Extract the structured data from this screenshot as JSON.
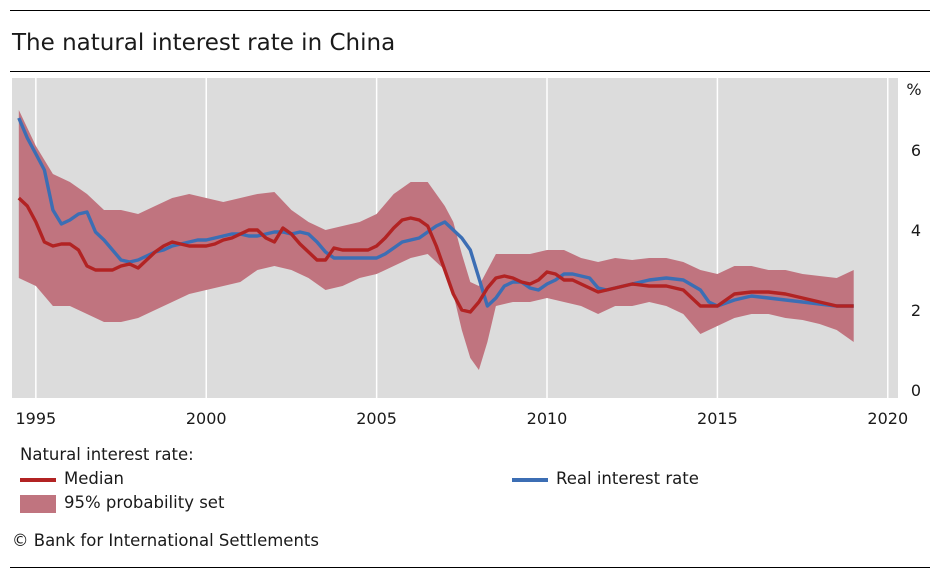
{
  "title": "The natural interest rate in China",
  "footer": "© Bank for International Settlements",
  "legend": {
    "heading": "Natural interest rate:",
    "median": "Median",
    "band": "95% probability set",
    "real": "Real interest rate"
  },
  "colors": {
    "plot_bg": "#dcdcdc",
    "band": "#c0747f",
    "median": "#b22323",
    "real": "#3c6eb4",
    "grid": "#ffffff"
  },
  "chart_data": {
    "type": "line",
    "title": "The natural interest rate in China",
    "unit_label": "%",
    "xlim": [
      1994.3,
      2020.3
    ],
    "ylim": [
      -0.2,
      7.8
    ],
    "x_ticks": [
      1995,
      2000,
      2005,
      2010,
      2015,
      2020
    ],
    "y_ticks": [
      0,
      2,
      4,
      6
    ],
    "grid": "vertical",
    "series": [
      {
        "name": "Median",
        "role": "line",
        "x": [
          1994.5,
          1994.75,
          1995,
          1995.25,
          1995.5,
          1995.75,
          1996,
          1996.25,
          1996.5,
          1996.75,
          1997,
          1997.25,
          1997.5,
          1997.75,
          1998,
          1998.25,
          1998.5,
          1998.75,
          1999,
          1999.25,
          1999.5,
          1999.75,
          2000,
          2000.25,
          2000.5,
          2000.75,
          2001,
          2001.25,
          2001.5,
          2001.75,
          2002,
          2002.25,
          2002.5,
          2002.75,
          2003,
          2003.25,
          2003.5,
          2003.75,
          2004,
          2004.25,
          2004.5,
          2004.75,
          2005,
          2005.25,
          2005.5,
          2005.75,
          2006,
          2006.25,
          2006.5,
          2006.75,
          2007,
          2007.25,
          2007.5,
          2007.75,
          2008,
          2008.25,
          2008.5,
          2008.75,
          2009,
          2009.25,
          2009.5,
          2009.75,
          2010,
          2010.25,
          2010.5,
          2010.75,
          2011,
          2011.5,
          2012,
          2012.5,
          2013,
          2013.5,
          2014,
          2014.5,
          2015,
          2015.5,
          2016,
          2016.5,
          2017,
          2017.5,
          2018,
          2018.5,
          2019
        ],
        "values": [
          4.8,
          4.6,
          4.2,
          3.7,
          3.6,
          3.65,
          3.65,
          3.5,
          3.1,
          3.0,
          3.0,
          3.0,
          3.1,
          3.15,
          3.05,
          3.25,
          3.45,
          3.6,
          3.7,
          3.65,
          3.6,
          3.6,
          3.6,
          3.65,
          3.75,
          3.8,
          3.9,
          4.0,
          4.0,
          3.8,
          3.7,
          4.05,
          3.9,
          3.65,
          3.45,
          3.25,
          3.25,
          3.55,
          3.5,
          3.5,
          3.5,
          3.5,
          3.6,
          3.8,
          4.05,
          4.25,
          4.3,
          4.25,
          4.1,
          3.6,
          3.0,
          2.4,
          2.0,
          1.95,
          2.2,
          2.55,
          2.8,
          2.85,
          2.8,
          2.7,
          2.65,
          2.75,
          2.95,
          2.9,
          2.75,
          2.75,
          2.65,
          2.45,
          2.55,
          2.65,
          2.6,
          2.6,
          2.5,
          2.1,
          2.1,
          2.4,
          2.45,
          2.45,
          2.4,
          2.3,
          2.2,
          2.1,
          2.1
        ]
      },
      {
        "name": "Real interest rate",
        "role": "line",
        "x": [
          1994.5,
          1994.75,
          1995,
          1995.25,
          1995.5,
          1995.75,
          1996,
          1996.25,
          1996.5,
          1996.75,
          1997,
          1997.25,
          1997.5,
          1997.75,
          1998,
          1998.25,
          1998.5,
          1998.75,
          1999,
          1999.25,
          1999.5,
          1999.75,
          2000,
          2000.25,
          2000.5,
          2000.75,
          2001,
          2001.25,
          2001.5,
          2001.75,
          2002,
          2002.25,
          2002.5,
          2002.75,
          2003,
          2003.25,
          2003.5,
          2003.75,
          2004,
          2004.25,
          2004.5,
          2004.75,
          2005,
          2005.25,
          2005.5,
          2005.75,
          2006,
          2006.25,
          2006.5,
          2006.75,
          2007,
          2007.25,
          2007.5,
          2007.75,
          2008,
          2008.25,
          2008.5,
          2008.75,
          2009,
          2009.25,
          2009.5,
          2009.75,
          2010,
          2010.25,
          2010.5,
          2010.75,
          2011,
          2011.25,
          2011.5,
          2011.75,
          2012,
          2012.5,
          2013,
          2013.5,
          2014,
          2014.5,
          2014.75,
          2015,
          2015.5,
          2016,
          2016.5,
          2017,
          2017.5,
          2018,
          2018.5,
          2019
        ],
        "values": [
          6.8,
          6.3,
          5.9,
          5.5,
          4.5,
          4.15,
          4.25,
          4.4,
          4.45,
          3.95,
          3.75,
          3.5,
          3.25,
          3.2,
          3.25,
          3.35,
          3.45,
          3.5,
          3.6,
          3.65,
          3.7,
          3.75,
          3.75,
          3.8,
          3.85,
          3.9,
          3.9,
          3.85,
          3.85,
          3.9,
          3.95,
          3.95,
          3.9,
          3.95,
          3.9,
          3.7,
          3.45,
          3.3,
          3.3,
          3.3,
          3.3,
          3.3,
          3.3,
          3.4,
          3.55,
          3.7,
          3.75,
          3.8,
          3.95,
          4.1,
          4.2,
          4.0,
          3.8,
          3.5,
          2.8,
          2.1,
          2.3,
          2.6,
          2.7,
          2.7,
          2.55,
          2.5,
          2.65,
          2.75,
          2.9,
          2.9,
          2.85,
          2.8,
          2.55,
          2.5,
          2.55,
          2.65,
          2.75,
          2.8,
          2.75,
          2.5,
          2.2,
          2.1,
          2.25,
          2.35,
          2.3,
          2.25,
          2.2,
          2.15,
          2.1,
          2.1
        ]
      },
      {
        "name": "95% probability set",
        "role": "band",
        "x": [
          1994.5,
          1995,
          1995.5,
          1996,
          1996.5,
          1997,
          1997.5,
          1998,
          1998.5,
          1999,
          1999.5,
          2000,
          2000.5,
          2001,
          2001.5,
          2002,
          2002.5,
          2003,
          2003.5,
          2004,
          2004.5,
          2005,
          2005.5,
          2006,
          2006.5,
          2007,
          2007.25,
          2007.5,
          2007.75,
          2008,
          2008.25,
          2008.5,
          2009,
          2009.5,
          2010,
          2010.5,
          2011,
          2011.5,
          2012,
          2012.5,
          2013,
          2013.5,
          2014,
          2014.5,
          2015,
          2015.5,
          2016,
          2016.5,
          2017,
          2017.5,
          2018,
          2018.5,
          2019
        ],
        "lower": [
          2.8,
          2.6,
          2.1,
          2.1,
          1.9,
          1.7,
          1.7,
          1.8,
          2.0,
          2.2,
          2.4,
          2.5,
          2.6,
          2.7,
          3.0,
          3.1,
          3.0,
          2.8,
          2.5,
          2.6,
          2.8,
          2.9,
          3.1,
          3.3,
          3.4,
          3.0,
          2.4,
          1.5,
          0.8,
          0.5,
          1.2,
          2.1,
          2.2,
          2.2,
          2.3,
          2.2,
          2.1,
          1.9,
          2.1,
          2.1,
          2.2,
          2.1,
          1.9,
          1.4,
          1.6,
          1.8,
          1.9,
          1.9,
          1.8,
          1.75,
          1.65,
          1.5,
          1.2
        ],
        "upper": [
          7.0,
          6.1,
          5.4,
          5.2,
          4.9,
          4.5,
          4.5,
          4.4,
          4.6,
          4.8,
          4.9,
          4.8,
          4.7,
          4.8,
          4.9,
          4.95,
          4.5,
          4.2,
          4.0,
          4.1,
          4.2,
          4.4,
          4.9,
          5.2,
          5.2,
          4.6,
          4.2,
          3.4,
          2.7,
          2.6,
          3.0,
          3.4,
          3.4,
          3.4,
          3.5,
          3.5,
          3.3,
          3.2,
          3.3,
          3.25,
          3.3,
          3.3,
          3.2,
          3.0,
          2.9,
          3.1,
          3.1,
          3.0,
          3.0,
          2.9,
          2.85,
          2.8,
          3.0
        ]
      }
    ]
  }
}
